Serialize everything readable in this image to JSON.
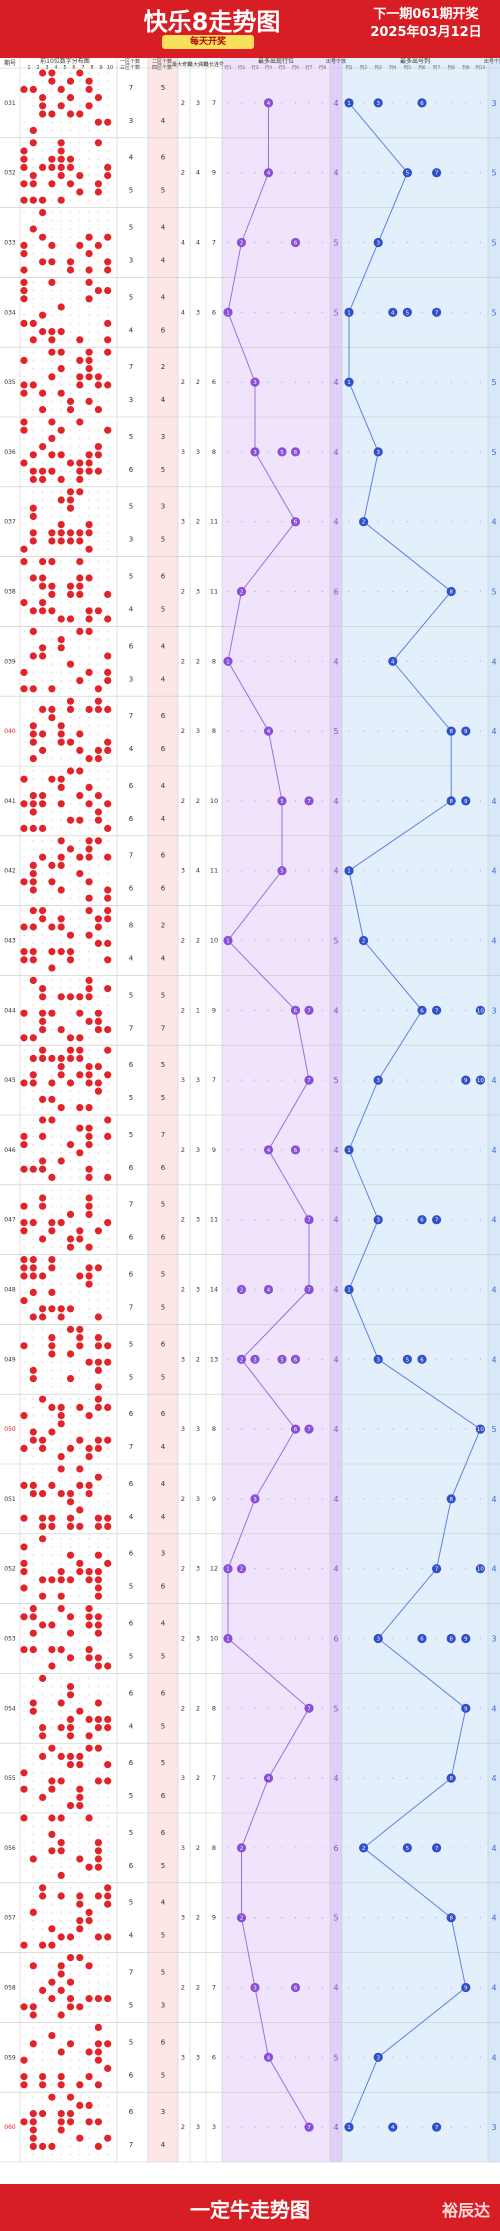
{
  "header": {
    "title": "快乐8走势图",
    "badge": "每天开奖",
    "next_issue": "下一期061期开奖",
    "date": "2025年03月12日"
  },
  "footer": {
    "title": "一定牛走势图",
    "brand": "裕辰达"
  },
  "colors": {
    "brand_red": "#d81e25",
    "purple_line": "#9b6fe0",
    "purple_ball": "#8a4fd8",
    "blue_line": "#5f7fe6",
    "blue_ball": "#2f50c8",
    "red_ball": "#e0242a",
    "count_text": "#6f5cc9",
    "count_text_blue": "#3a6fd0"
  },
  "chart_data": {
    "type": "table",
    "title": "快乐8走势图",
    "column_headers": [
      "期号",
      "前10位数字分布图",
      "一区个数",
      "二区个数",
      "三区个数",
      "四区个数",
      "最大奇数",
      "最大偶数",
      "最长连号",
      "最多出现行位",
      "出号个数",
      "最多出号列",
      "出号个数"
    ],
    "row_groups": [
      "行1",
      "行2",
      "行3",
      "行4",
      "行5",
      "行6",
      "行7",
      "行8"
    ],
    "col_groups": [
      "列1",
      "列2",
      "列3",
      "列4",
      "列5",
      "列6",
      "列7",
      "列8",
      "列9",
      "列10"
    ],
    "issues": [
      "031",
      "032",
      "033",
      "034",
      "035",
      "036",
      "037",
      "038",
      "039",
      "040",
      "041",
      "042",
      "043",
      "044",
      "045",
      "046",
      "047",
      "048",
      "049",
      "050",
      "051",
      "052",
      "053",
      "054",
      "055",
      "056",
      "057",
      "058",
      "059",
      "060"
    ],
    "zone_1_3": [
      [
        7,
        3
      ],
      [
        4,
        5
      ],
      [
        5,
        3
      ],
      [
        5,
        4
      ],
      [
        7,
        3
      ],
      [
        5,
        6
      ],
      [
        5,
        3
      ],
      [
        5,
        4
      ],
      [
        6,
        3
      ],
      [
        7,
        4
      ],
      [
        6,
        6
      ],
      [
        7,
        6
      ],
      [
        8,
        4
      ],
      [
        5,
        7
      ],
      [
        6,
        5
      ],
      [
        5,
        6
      ],
      [
        7,
        6
      ],
      [
        6,
        7
      ],
      [
        5,
        5
      ],
      [
        6,
        7
      ],
      [
        6,
        4
      ],
      [
        6,
        5
      ],
      [
        6,
        5
      ],
      [
        6,
        4
      ],
      [
        6,
        5
      ],
      [
        5,
        6
      ],
      [
        5,
        4
      ],
      [
        7,
        5
      ],
      [
        5,
        6
      ],
      [
        6,
        7
      ]
    ],
    "zone_2_4": [
      [
        5,
        4
      ],
      [
        6,
        5
      ],
      [
        4,
        4
      ],
      [
        4,
        6
      ],
      [
        2,
        4
      ],
      [
        3,
        5
      ],
      [
        3,
        5
      ],
      [
        6,
        5
      ],
      [
        4,
        4
      ],
      [
        6,
        6
      ],
      [
        4,
        4
      ],
      [
        6,
        6
      ],
      [
        2,
        4
      ],
      [
        5,
        7
      ],
      [
        5,
        5
      ],
      [
        7,
        6
      ],
      [
        5,
        6
      ],
      [
        5,
        5
      ],
      [
        6,
        5
      ],
      [
        6,
        4
      ],
      [
        4,
        4
      ],
      [
        3,
        6
      ],
      [
        4,
        5
      ],
      [
        6,
        5
      ],
      [
        5,
        6
      ],
      [
        6,
        5
      ],
      [
        4,
        5
      ],
      [
        5,
        3
      ],
      [
        6,
        5
      ],
      [
        3,
        4
      ]
    ],
    "stats": [
      [
        2,
        3,
        7
      ],
      [
        2,
        4,
        9
      ],
      [
        4,
        4,
        7
      ],
      [
        4,
        3,
        6
      ],
      [
        2,
        2,
        6
      ],
      [
        3,
        3,
        8
      ],
      [
        3,
        2,
        11
      ],
      [
        2,
        3,
        11
      ],
      [
        2,
        2,
        8
      ],
      [
        2,
        3,
        8
      ],
      [
        2,
        2,
        10
      ],
      [
        3,
        4,
        11
      ],
      [
        2,
        2,
        10
      ],
      [
        2,
        1,
        9
      ],
      [
        3,
        3,
        7
      ],
      [
        2,
        3,
        9
      ],
      [
        2,
        3,
        11
      ],
      [
        2,
        3,
        14
      ],
      [
        3,
        2,
        13
      ],
      [
        3,
        3,
        8
      ],
      [
        2,
        3,
        9
      ],
      [
        2,
        3,
        12
      ],
      [
        2,
        3,
        10
      ],
      [
        2,
        2,
        8
      ],
      [
        3,
        2,
        7
      ],
      [
        3,
        2,
        8
      ],
      [
        3,
        2,
        9
      ],
      [
        2,
        2,
        7
      ],
      [
        3,
        3,
        6
      ],
      [
        2,
        3,
        3
      ]
    ],
    "most_row": [
      4,
      4,
      2,
      1,
      3,
      3,
      6,
      2,
      1,
      4,
      5,
      5,
      1,
      6,
      7,
      4,
      7,
      7,
      2,
      6,
      3,
      1,
      1,
      7,
      4,
      2,
      2,
      3,
      4,
      7
    ],
    "most_row_extra": [
      [],
      [],
      [
        6
      ],
      [],
      [],
      [
        5,
        6
      ],
      [],
      [],
      [],
      [],
      [
        7
      ],
      [],
      [],
      [
        7
      ],
      [],
      [
        6
      ],
      [],
      [
        2,
        4,
        7
      ],
      [
        3,
        5,
        6
      ],
      [
        7
      ],
      [],
      [
        2
      ],
      [],
      [],
      [],
      [],
      [],
      [
        6
      ],
      [],
      []
    ],
    "row_count": [
      4,
      4,
      5,
      5,
      4,
      4,
      4,
      6,
      4,
      5,
      4,
      4,
      5,
      4,
      5,
      4,
      4,
      4,
      4,
      4,
      4,
      4,
      6,
      5,
      4,
      6,
      5,
      4,
      5,
      4
    ],
    "most_col": [
      1,
      5,
      3,
      1,
      1,
      3,
      2,
      8,
      4,
      8,
      8,
      1,
      2,
      6,
      3,
      1,
      3,
      1,
      3,
      10,
      8,
      7,
      3,
      9,
      8,
      2,
      8,
      9,
      3,
      1
    ],
    "most_col_extra": [
      [
        3,
        6
      ],
      [
        7
      ],
      [],
      [
        4,
        5,
        7
      ],
      [],
      [],
      [],
      [],
      [],
      [
        9
      ],
      [
        9
      ],
      [],
      [],
      [
        7,
        10
      ],
      [
        9,
        10
      ],
      [],
      [
        6,
        7
      ],
      [],
      [
        5,
        6
      ],
      [],
      [],
      [
        10
      ],
      [
        6,
        8,
        9
      ],
      [],
      [],
      [
        5,
        7
      ],
      [],
      [],
      [],
      [
        4,
        7
      ]
    ],
    "col_count": [
      3,
      5,
      5,
      5,
      5,
      5,
      4,
      5,
      4,
      4,
      4,
      4,
      4,
      3,
      4,
      4,
      4,
      4,
      4,
      5,
      4,
      4,
      3,
      4,
      4,
      4,
      4,
      4,
      4,
      3
    ]
  }
}
